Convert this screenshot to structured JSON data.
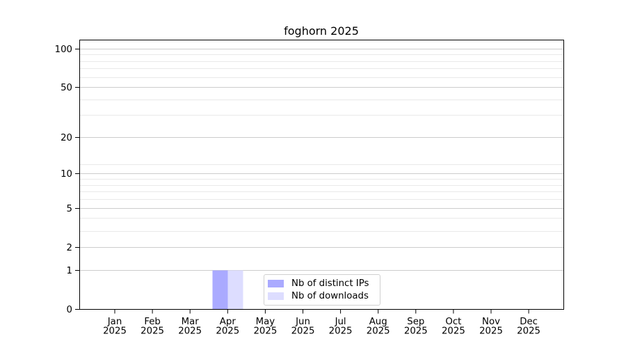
{
  "figure": {
    "background": "#ffffff"
  },
  "chart_data": {
    "type": "bar",
    "title": "foghorn 2025",
    "categories": [
      "Jan 2025",
      "Feb 2025",
      "Mar 2025",
      "Apr 2025",
      "May 2025",
      "Jun 2025",
      "Jul 2025",
      "Aug 2025",
      "Sep 2025",
      "Oct 2025",
      "Nov 2025",
      "Dec 2025"
    ],
    "series": [
      {
        "name": "Nb of distinct IPs",
        "color": "#aaaaff",
        "values": [
          0,
          0,
          0,
          1,
          0,
          0,
          0,
          0,
          0,
          0,
          0,
          0
        ]
      },
      {
        "name": "Nb of downloads",
        "color": "#ddddff",
        "values": [
          0,
          0,
          0,
          1,
          0,
          0,
          0,
          0,
          0,
          0,
          0,
          0
        ]
      }
    ],
    "xlabel": "",
    "ylabel": "",
    "yscale": "log1p",
    "ylim": [
      0,
      117
    ],
    "yticks": [
      0,
      1,
      2,
      5,
      10,
      20,
      50,
      100
    ],
    "minor_gridlines": [
      3,
      4,
      6,
      7,
      8,
      9,
      12,
      30,
      40,
      60,
      70,
      80,
      90
    ],
    "grid": true,
    "legend_position": "lower center",
    "colors": {
      "spine": "#000000",
      "tick_label": "#000000",
      "major_grid": "#cccccc",
      "minor_grid": "#e9e9e9"
    }
  }
}
